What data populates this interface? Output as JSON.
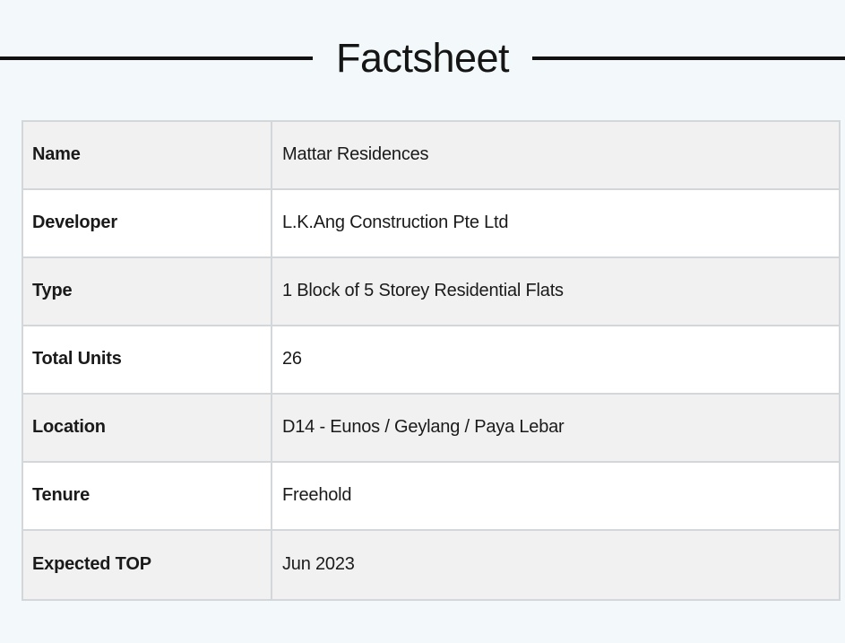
{
  "header": {
    "title": "Factsheet"
  },
  "factsheet": {
    "rows": [
      {
        "label": "Name",
        "value": "Mattar Residences"
      },
      {
        "label": "Developer",
        "value": "L.K.Ang Construction Pte Ltd"
      },
      {
        "label": "Type",
        "value": "1 Block of 5 Storey Residential Flats"
      },
      {
        "label": "Total Units",
        "value": "26"
      },
      {
        "label": "Location",
        "value": "D14 - Eunos / Geylang / Paya Lebar"
      },
      {
        "label": "Tenure",
        "value": "Freehold"
      },
      {
        "label": "Expected TOP",
        "value": "Jun 2023"
      }
    ]
  },
  "colors": {
    "page_background": "#f3f9fa",
    "row_alternate": "#f1f1f1",
    "row_plain": "#ffffff",
    "table_border": "#d4d7d9",
    "title_rule": "#111111",
    "text": "#1a1a1a"
  }
}
